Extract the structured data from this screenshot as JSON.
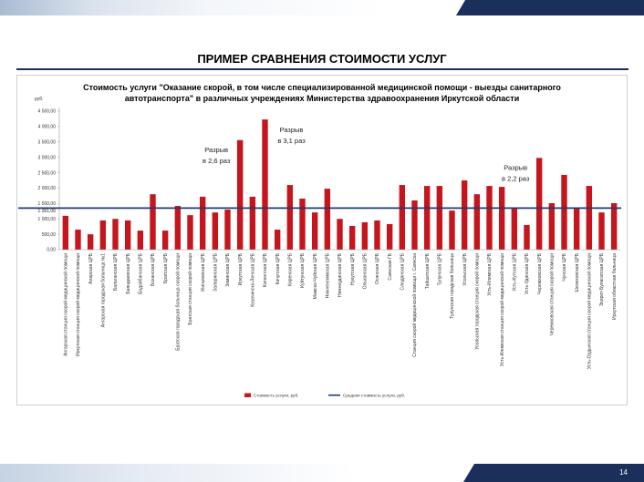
{
  "slide": {
    "title": "ПРИМЕР СРАВНЕНИЯ СТОИМОСТИ УСЛУГ",
    "page_number": "14"
  },
  "colors": {
    "navy": "#1b2f5b",
    "bar": "#c4161c",
    "average_line": "#1f3b70"
  },
  "chart_data": {
    "type": "bar",
    "title_lines": [
      "Стоимость услуги \"Оказание скорой, в том числе специализированной медицинской помощи - выезды санитарного",
      "автотранспорта\" в различных учреждениях Министерства здравоохранения Иркутской области"
    ],
    "ylabel": "руб.",
    "ylim": [
      0,
      4500
    ],
    "yticks": [
      0,
      500,
      1000,
      1500,
      2000,
      2500,
      3000,
      3500,
      4000,
      4500
    ],
    "ytick_labels": [
      "0,00",
      "500,00",
      "1 000,00",
      "1 500,00",
      "2 000,00",
      "2 500,00",
      "3 000,00",
      "3 500,00",
      "4 000,00",
      "4 500,00"
    ],
    "grid": false,
    "legend": "bottom",
    "categories": [
      "Ангарская станция скорой медицинской помощи",
      "Иркутская станция скорой медицинской помощи",
      "Аларская ЦРБ",
      "Ангарская городская больница №1",
      "Балаганская ЦРБ",
      "Баяндаевская ЦРБ",
      "Бодайбинская ЦРБ",
      "Боханская ЦРБ",
      "Братская ЦРБ",
      "Братская городская больница скорой помощи",
      "Братская станция скорой помощи",
      "Жигаловская ЦРБ",
      "Заларинская ЦРБ",
      "Зиминская ЦРБ",
      "Иркутская ЦРБ",
      "Казачинско-Ленская ЦРБ",
      "Катангская ЦРБ",
      "Качугская ЦРБ",
      "Киренская ЦРБ",
      "Куйтунская ЦРБ",
      "Мамско-Чуйская ЦРБ",
      "Нижнеилимская ЦРБ",
      "Нижнеудинская ЦРБ",
      "Нукутская ЦРБ",
      "Ольхонская ЦРБ",
      "Осинская ЦРБ",
      "Саянская ГБ",
      "Слюдянская ЦРБ",
      "Станция скорой медицинской помощи г. Саянска",
      "Тайшетская ЦРБ",
      "Тулунская ЦРБ",
      "Тулунская городская больница",
      "Усольская ЦРБ",
      "Усольская городская станция скорой помощи",
      "Усть-Илимская ЦРБ",
      "Усть-Илимская станция скорой медицинской помощи",
      "Усть-Кутская ЦРБ",
      "Усть-Удинская ЦРБ",
      "Черемховская ЦРБ",
      "Черемховская станция скорой помощи",
      "Чунская ЦРБ",
      "Шелеховская ЦРБ",
      "Усть-Ордынская станция скорой медицинской помощи",
      "Эхирит-Булагатская ЦРБ",
      "Иркутская областная больница"
    ],
    "series": [
      {
        "name": "Стоимость услуги, руб.",
        "values": [
          1100,
          650,
          500,
          950,
          1000,
          950,
          620,
          1800,
          620,
          1420,
          1120,
          1720,
          1210,
          1300,
          3560,
          1720,
          4230,
          650,
          2100,
          1660,
          1210,
          1980,
          1000,
          770,
          890,
          950,
          830,
          2100,
          1600,
          2070,
          2070,
          1270,
          2250,
          1800,
          2070,
          2040,
          1330,
          800,
          2980,
          1510,
          2430,
          1360,
          2070,
          1210,
          1510
        ]
      }
    ],
    "average": {
      "name": "Средняя стоимость услуги, руб.",
      "value": 1351.06,
      "label": "1 351,06"
    },
    "annotations": [
      {
        "lines": [
          "Разрыв",
          "в 2,6 раз"
        ],
        "category_index": 14
      },
      {
        "lines": [
          "Разрыв",
          "в 3,1 раз"
        ],
        "category_index": 16
      },
      {
        "lines": [
          "Разрыв",
          "в 2,2 раз"
        ],
        "category_index": 38
      }
    ]
  }
}
